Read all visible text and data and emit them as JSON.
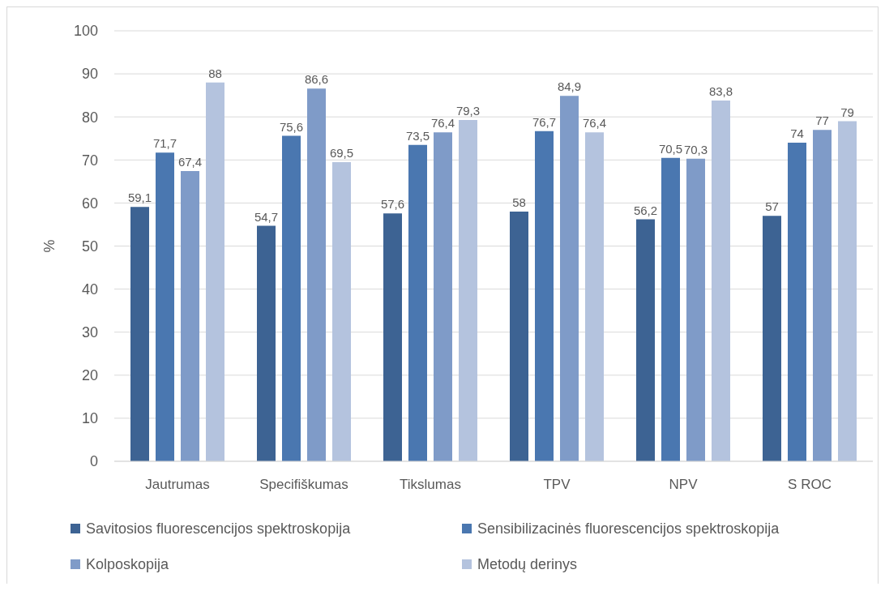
{
  "chart_data": {
    "type": "bar",
    "ylabel": "%",
    "categories": [
      "Jautrumas",
      "Specifiškumas",
      "Tikslumas",
      "TPV",
      "NPV",
      "S ROC"
    ],
    "series": [
      {
        "name": "Savitosios fluorescencijos spektroskopija",
        "color": "#3d6393",
        "values": [
          59.1,
          54.7,
          57.6,
          58,
          56.2,
          57
        ],
        "value_labels": [
          "59,1",
          "54,7",
          "57,6",
          "58",
          "56,2",
          "57"
        ]
      },
      {
        "name": "Sensibilizacinės fluorescencijos spektroskopija",
        "color": "#4a77b0",
        "values": [
          71.7,
          75.6,
          73.5,
          76.7,
          70.5,
          74
        ],
        "value_labels": [
          "71,7",
          "75,6",
          "73,5",
          "76,7",
          "70,5",
          "74"
        ]
      },
      {
        "name": "Kolposkopija",
        "color": "#7f9bc8",
        "values": [
          67.4,
          86.6,
          76.4,
          84.9,
          70.3,
          77
        ],
        "value_labels": [
          "67,4",
          "86,6",
          "76,4",
          "84,9",
          "70,3",
          "77"
        ]
      },
      {
        "name": "Metodų derinys",
        "color": "#b4c3de",
        "values": [
          88,
          69.5,
          79.3,
          76.4,
          83.8,
          79
        ],
        "value_labels": [
          "88",
          "69,5",
          "79,3",
          "76,4",
          "83,8",
          "79"
        ]
      }
    ],
    "ylim": [
      0,
      100
    ],
    "yticks": [
      0,
      10,
      20,
      30,
      40,
      50,
      60,
      70,
      80,
      90,
      100
    ],
    "grid": "y",
    "legend": "bottom"
  }
}
